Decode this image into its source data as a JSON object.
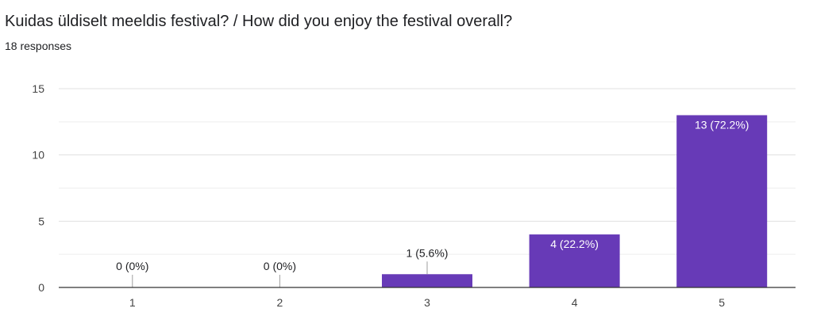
{
  "question": {
    "title": "Kuidas üldiselt meeldis festival? / How did you enjoy the festival overall?",
    "responses": "18 responses"
  },
  "chart_data": {
    "type": "bar",
    "categories": [
      "1",
      "2",
      "3",
      "4",
      "5"
    ],
    "values": [
      0,
      0,
      1,
      4,
      13
    ],
    "data_labels": [
      "0 (0%)",
      "0 (0%)",
      "1 (5.6%)",
      "4 (22.2%)",
      "13 (72.2%)"
    ],
    "yticks": [
      0,
      5,
      10,
      15
    ],
    "ylim": [
      0,
      15
    ],
    "grid": true,
    "bar_color": "#673ab7",
    "title": "Kuidas üldiselt meeldis festival? / How did you enjoy the festival overall?",
    "xlabel": "",
    "ylabel": ""
  }
}
